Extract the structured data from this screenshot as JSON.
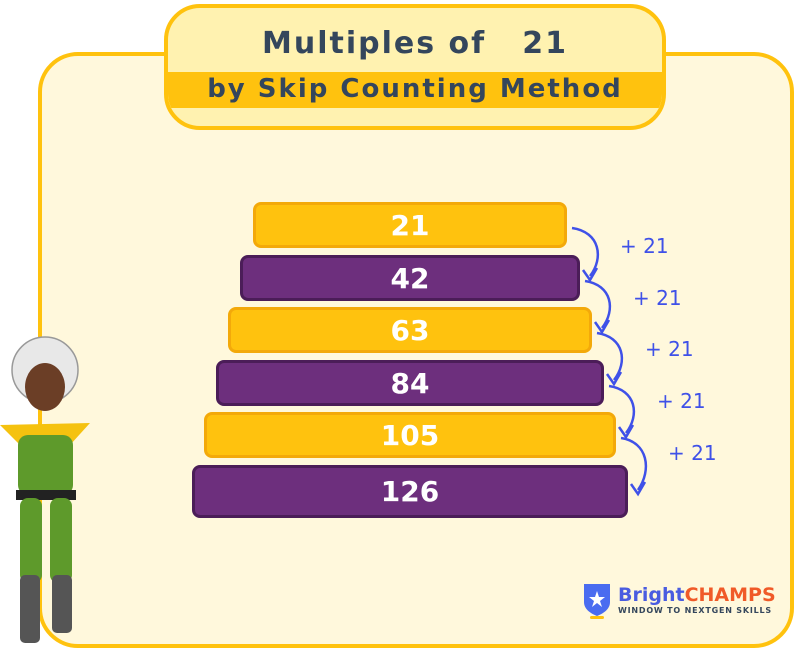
{
  "title": {
    "line1": "Multiples of",
    "number": "21",
    "line2": "by Skip Counting Method"
  },
  "steps": [
    {
      "value": "21",
      "color": "yellow"
    },
    {
      "value": "42",
      "color": "purple"
    },
    {
      "value": "63",
      "color": "yellow"
    },
    {
      "value": "84",
      "color": "purple"
    },
    {
      "value": "105",
      "color": "yellow"
    },
    {
      "value": "126",
      "color": "purple"
    }
  ],
  "increment_label": "+ 21",
  "brand": {
    "part1": "Bright",
    "part2": "CHAMPS",
    "tagline": "WINDOW TO NEXTGEN SKILLS"
  },
  "colors": {
    "yellow": "#FFC20E",
    "purple": "#6D2F7D",
    "arrow": "#3F51E8",
    "text": "#34465C"
  }
}
